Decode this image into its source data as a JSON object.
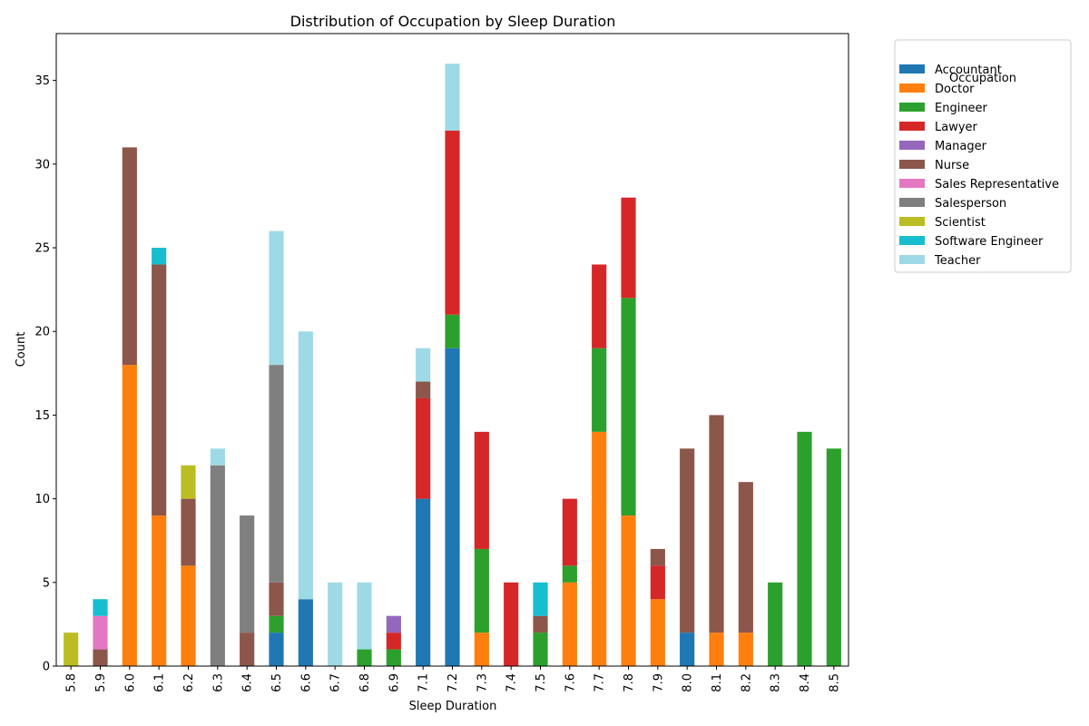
{
  "chart_data": {
    "type": "bar",
    "stacked": true,
    "title": "Distribution of Occupation by Sleep Duration",
    "xlabel": "Sleep Duration",
    "ylabel": "Count",
    "ylim": [
      0,
      37.8
    ],
    "yticks": [
      0,
      5,
      10,
      15,
      20,
      25,
      30,
      35
    ],
    "grid": false,
    "legend_title": "Occupation",
    "legend_position": "outside-top-right",
    "categories": [
      "5.8",
      "5.9",
      "6.0",
      "6.1",
      "6.2",
      "6.3",
      "6.4",
      "6.5",
      "6.6",
      "6.7",
      "6.8",
      "6.9",
      "7.1",
      "7.2",
      "7.3",
      "7.4",
      "7.5",
      "7.6",
      "7.7",
      "7.8",
      "7.9",
      "8.0",
      "8.1",
      "8.2",
      "8.3",
      "8.4",
      "8.5"
    ],
    "series": [
      {
        "name": "Accountant",
        "color": "#1f77b4",
        "values": [
          0,
          0,
          0,
          0,
          0,
          0,
          0,
          2,
          4,
          0,
          0,
          0,
          10,
          19,
          0,
          0,
          0,
          0,
          0,
          0,
          0,
          2,
          0,
          0,
          0,
          0,
          0
        ]
      },
      {
        "name": "Doctor",
        "color": "#ff7f0e",
        "values": [
          0,
          0,
          18,
          9,
          6,
          0,
          0,
          0,
          0,
          0,
          0,
          0,
          0,
          0,
          2,
          0,
          0,
          5,
          14,
          9,
          4,
          0,
          2,
          2,
          0,
          0,
          0
        ]
      },
      {
        "name": "Engineer",
        "color": "#2ca02c",
        "values": [
          0,
          0,
          0,
          0,
          0,
          0,
          0,
          1,
          0,
          0,
          1,
          1,
          0,
          2,
          5,
          0,
          2,
          1,
          5,
          13,
          0,
          0,
          0,
          0,
          5,
          14,
          13
        ]
      },
      {
        "name": "Lawyer",
        "color": "#d62728",
        "values": [
          0,
          0,
          0,
          0,
          0,
          0,
          0,
          0,
          0,
          0,
          0,
          1,
          6,
          11,
          7,
          5,
          0,
          4,
          5,
          6,
          2,
          0,
          0,
          0,
          0,
          0,
          0
        ]
      },
      {
        "name": "Manager",
        "color": "#9467bd",
        "values": [
          0,
          0,
          0,
          0,
          0,
          0,
          0,
          0,
          0,
          0,
          0,
          1,
          0,
          0,
          0,
          0,
          0,
          0,
          0,
          0,
          0,
          0,
          0,
          0,
          0,
          0,
          0
        ]
      },
      {
        "name": "Nurse",
        "color": "#8c564b",
        "values": [
          0,
          1,
          13,
          15,
          4,
          0,
          2,
          2,
          0,
          0,
          0,
          0,
          1,
          0,
          0,
          0,
          1,
          0,
          0,
          0,
          1,
          11,
          13,
          9,
          0,
          0,
          0
        ]
      },
      {
        "name": "Sales Representative",
        "color": "#e377c2",
        "values": [
          0,
          2,
          0,
          0,
          0,
          0,
          0,
          0,
          0,
          0,
          0,
          0,
          0,
          0,
          0,
          0,
          0,
          0,
          0,
          0,
          0,
          0,
          0,
          0,
          0,
          0,
          0
        ]
      },
      {
        "name": "Salesperson",
        "color": "#7f7f7f",
        "values": [
          0,
          0,
          0,
          0,
          0,
          12,
          7,
          13,
          0,
          0,
          0,
          0,
          0,
          0,
          0,
          0,
          0,
          0,
          0,
          0,
          0,
          0,
          0,
          0,
          0,
          0,
          0
        ]
      },
      {
        "name": "Scientist",
        "color": "#bcbd22",
        "values": [
          2,
          0,
          0,
          0,
          2,
          0,
          0,
          0,
          0,
          0,
          0,
          0,
          0,
          0,
          0,
          0,
          0,
          0,
          0,
          0,
          0,
          0,
          0,
          0,
          0,
          0,
          0
        ]
      },
      {
        "name": "Software Engineer",
        "color": "#17becf",
        "values": [
          0,
          1,
          0,
          1,
          0,
          0,
          0,
          0,
          0,
          0,
          0,
          0,
          0,
          0,
          0,
          0,
          2,
          0,
          0,
          0,
          0,
          0,
          0,
          0,
          0,
          0,
          0
        ]
      },
      {
        "name": "Teacher",
        "color": "#9edae5",
        "values": [
          0,
          0,
          0,
          0,
          0,
          1,
          0,
          8,
          16,
          5,
          4,
          0,
          2,
          4,
          0,
          0,
          0,
          0,
          0,
          0,
          0,
          0,
          0,
          0,
          0,
          0,
          0
        ]
      }
    ]
  }
}
